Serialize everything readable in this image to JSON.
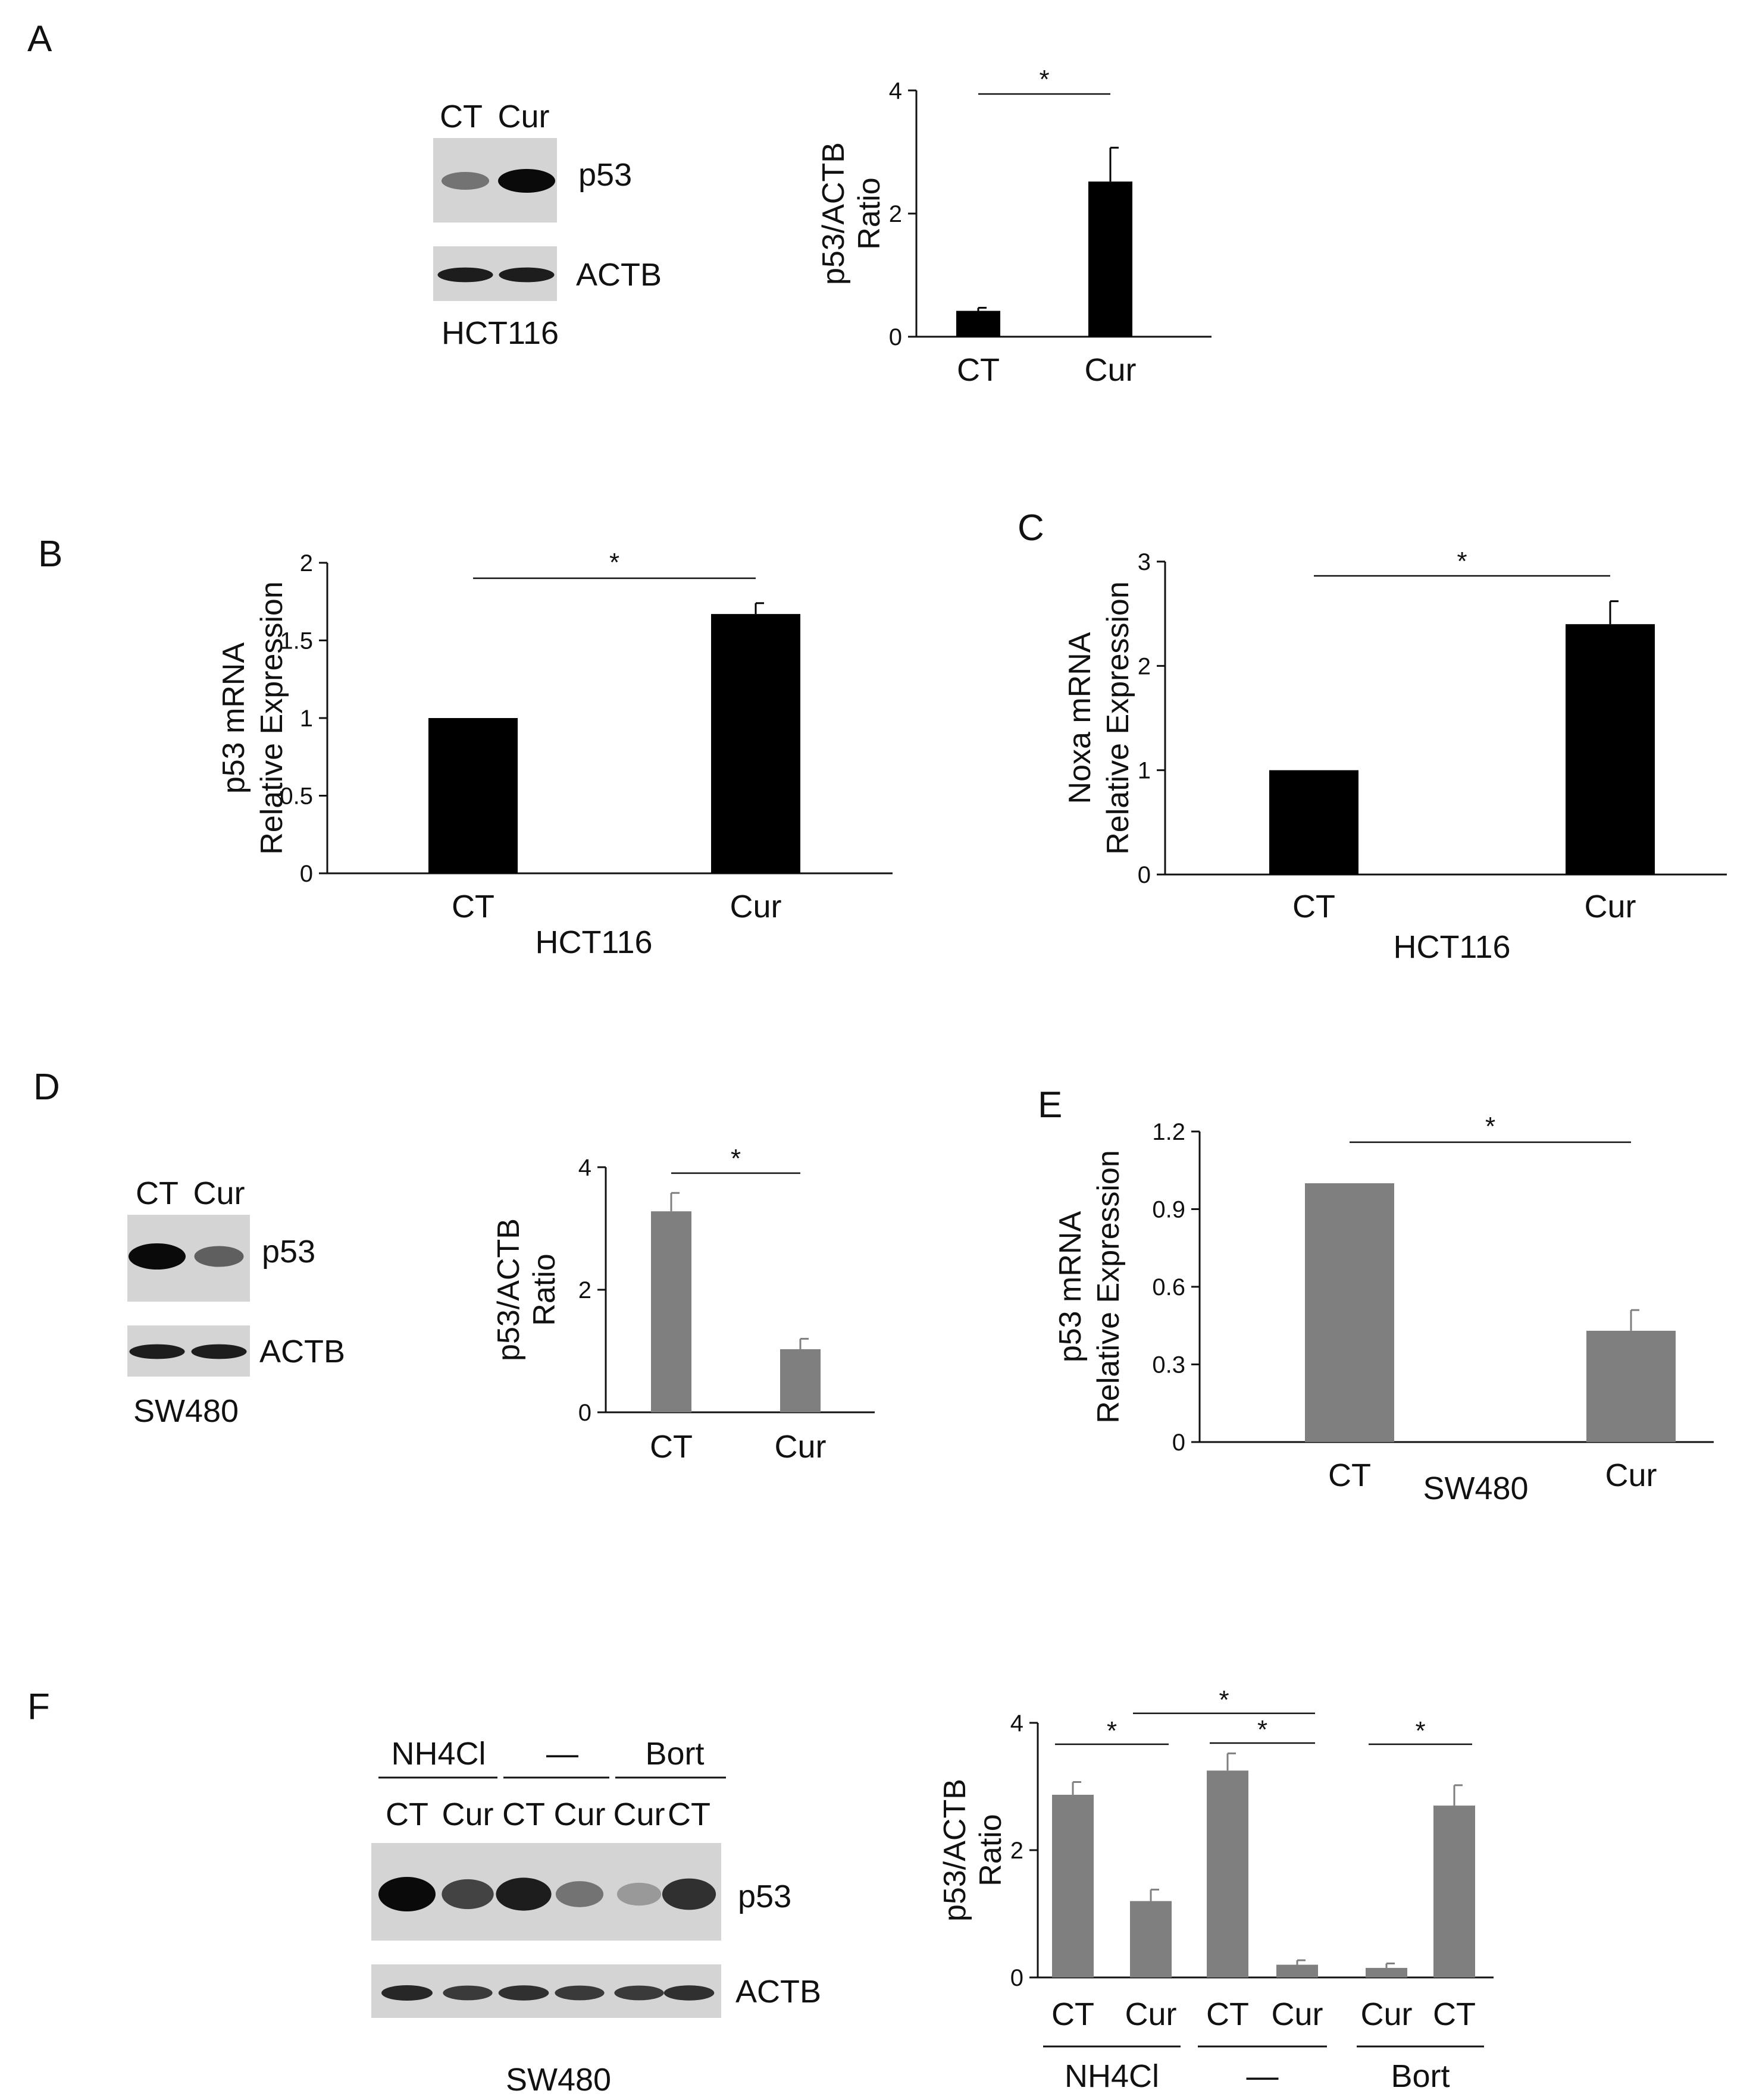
{
  "panels": {
    "A": {
      "letter": "A",
      "blot": {
        "lanes": [
          "CT",
          "Cur"
        ],
        "bands": [
          "p53",
          "ACTB"
        ],
        "cell_line": "HCT116",
        "intensities": {
          "p53": [
            0.45,
            1.0
          ],
          "ACTB": [
            0.9,
            0.9
          ]
        }
      }
    },
    "B": {
      "letter": "B"
    },
    "C": {
      "letter": "C"
    },
    "D": {
      "letter": "D",
      "blot": {
        "lanes": [
          "CT",
          "Cur"
        ],
        "bands": [
          "p53",
          "ACTB"
        ],
        "cell_line": "SW480",
        "intensities": {
          "p53": [
            1.0,
            0.55
          ],
          "ACTB": [
            0.9,
            0.9
          ]
        }
      }
    },
    "E": {
      "letter": "E"
    },
    "F": {
      "letter": "F",
      "blot": {
        "groups": [
          "NH4Cl",
          "—",
          "Bort"
        ],
        "lanes": [
          "CT",
          "Cur",
          "CT",
          "Cur",
          "Cur",
          "CT"
        ],
        "bands": [
          "p53",
          "ACTB"
        ],
        "cell_line": "SW480",
        "intensities": {
          "p53": [
            1.0,
            0.7,
            0.9,
            0.45,
            0.25,
            0.8
          ],
          "ACTB": [
            0.85,
            0.75,
            0.8,
            0.75,
            0.75,
            0.8
          ]
        }
      }
    }
  },
  "colors": {
    "black_bar": "#000000",
    "gray_bar": "#7f7f7f",
    "axis": "#111111"
  },
  "chart_data": [
    {
      "id": "A",
      "type": "bar",
      "categories": [
        "CT",
        "Cur"
      ],
      "values": [
        0.42,
        2.52
      ],
      "errors": [
        0.05,
        0.55
      ],
      "ylabel": [
        "p53/ACTB",
        "Ratio"
      ],
      "xlabel": "",
      "ylim": [
        0,
        4
      ],
      "yticks": [
        "0",
        "2",
        "4"
      ],
      "significance": [
        {
          "from": 0,
          "to": 1,
          "label": "*"
        }
      ]
    },
    {
      "id": "B",
      "type": "bar",
      "categories": [
        "CT",
        "Cur"
      ],
      "values": [
        1.0,
        1.67
      ],
      "errors": [
        0.0,
        0.07
      ],
      "ylabel": [
        "p53 mRNA",
        "Relative Expression"
      ],
      "xlabel": "HCT116",
      "ylim": [
        0,
        2
      ],
      "yticks": [
        "0",
        "0.5",
        "1",
        "1.5",
        "2"
      ],
      "significance": [
        {
          "from": 0,
          "to": 1,
          "label": "*"
        }
      ]
    },
    {
      "id": "C",
      "type": "bar",
      "categories": [
        "CT",
        "Cur"
      ],
      "values": [
        1.0,
        2.4
      ],
      "errors": [
        0.0,
        0.22
      ],
      "ylabel": [
        "Noxa mRNA",
        "Relative Expression"
      ],
      "xlabel": "HCT116",
      "ylim": [
        0,
        3
      ],
      "yticks": [
        "0",
        "1",
        "2",
        "3"
      ],
      "significance": [
        {
          "from": 0,
          "to": 1,
          "label": "*"
        }
      ]
    },
    {
      "id": "D",
      "type": "bar",
      "categories": [
        "CT",
        "Cur"
      ],
      "values": [
        3.28,
        1.03
      ],
      "errors": [
        0.3,
        0.17
      ],
      "ylabel": [
        "p53/ACTB",
        "Ratio"
      ],
      "xlabel": "",
      "ylim": [
        0,
        4
      ],
      "yticks": [
        "0",
        "2",
        "4"
      ],
      "significance": [
        {
          "from": 0,
          "to": 1,
          "label": "*"
        }
      ]
    },
    {
      "id": "E",
      "type": "bar",
      "categories": [
        "CT",
        "Cur"
      ],
      "values": [
        1.0,
        0.43
      ],
      "errors": [
        0.0,
        0.08
      ],
      "ylabel": [
        "p53 mRNA",
        "Relative Expression"
      ],
      "xlabel": "SW480",
      "ylim": [
        0,
        1.2
      ],
      "yticks": [
        "0",
        "0.3",
        "0.6",
        "0.9",
        "1.2"
      ],
      "significance": [
        {
          "from": 0,
          "to": 1,
          "label": "*"
        }
      ]
    },
    {
      "id": "F",
      "type": "bar",
      "categories": [
        "CT",
        "Cur",
        "CT",
        "Cur",
        "Cur",
        "CT"
      ],
      "values": [
        2.87,
        1.2,
        3.25,
        0.2,
        0.15,
        2.7
      ],
      "errors": [
        0.2,
        0.18,
        0.27,
        0.07,
        0.07,
        0.32
      ],
      "groups": [
        {
          "label": "NH4Cl",
          "from": 0,
          "to": 1
        },
        {
          "label": "—",
          "from": 2,
          "to": 3
        },
        {
          "label": "Bort",
          "from": 4,
          "to": 5
        }
      ],
      "ylabel": [
        "p53/ACTB",
        "Ratio"
      ],
      "xlabel": "",
      "ylim": [
        0,
        4
      ],
      "yticks": [
        "0",
        "2",
        "4"
      ],
      "significance": [
        {
          "from": 0,
          "to": 1,
          "label": "*"
        },
        {
          "from": 1,
          "to": 3,
          "label": "*"
        },
        {
          "from": 2,
          "to": 3,
          "label": "*"
        },
        {
          "from": 4,
          "to": 5,
          "label": "*"
        }
      ]
    }
  ]
}
